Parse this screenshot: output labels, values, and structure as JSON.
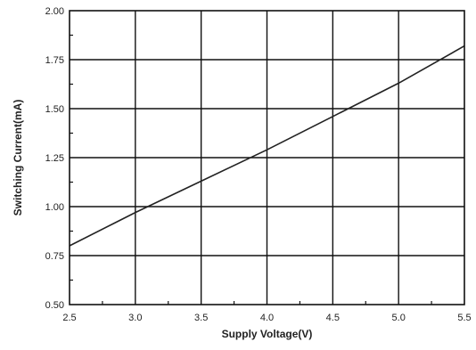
{
  "chart_data": {
    "type": "line",
    "title": "",
    "xlabel": "Supply Voltage(V)",
    "ylabel": "Switching Current(mA)",
    "xlim": [
      2.5,
      5.5
    ],
    "ylim": [
      0.5,
      2.0
    ],
    "x_ticks": [
      "2.5",
      "3.0",
      "3.5",
      "4.0",
      "4.5",
      "5.0",
      "5.5"
    ],
    "y_ticks": [
      "0.50",
      "0.75",
      "1.00",
      "1.25",
      "1.50",
      "1.75",
      "2.00"
    ],
    "grid": true,
    "series": [
      {
        "x": [
          2.5,
          3.0,
          3.5,
          4.0,
          4.5,
          5.0,
          5.5
        ],
        "y": [
          0.8,
          0.97,
          1.13,
          1.29,
          1.46,
          1.63,
          1.82
        ]
      }
    ],
    "colors": {
      "line": "#222222",
      "grid": "#111111",
      "frame": "#111111",
      "text": "#222222"
    }
  }
}
